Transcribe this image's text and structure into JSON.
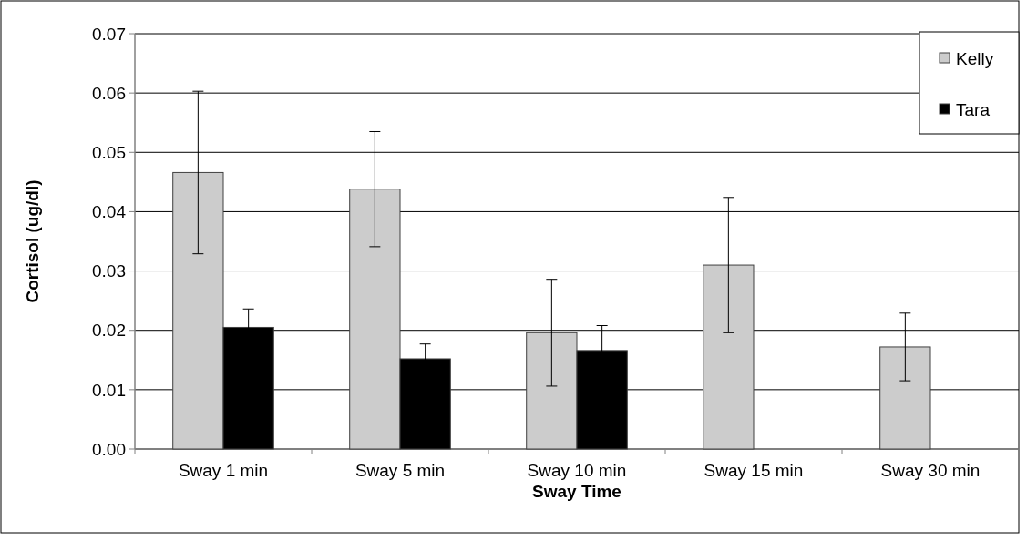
{
  "chart_data": {
    "type": "bar",
    "xlabel": "Sway Time",
    "ylabel": "Cortisol (ug/dl)",
    "categories": [
      "Sway 1 min",
      "Sway 5 min",
      "Sway 10 min",
      "Sway 15 min",
      "Sway 30 min"
    ],
    "series": [
      {
        "name": "Kelly",
        "color": "#cccccc",
        "values": [
          0.0466,
          0.0438,
          0.0196,
          0.031,
          0.0172
        ],
        "errors": [
          0.0137,
          0.0097,
          0.009,
          0.0114,
          0.0057
        ]
      },
      {
        "name": "Tara",
        "color": "#000000",
        "values": [
          0.0205,
          0.0152,
          0.0166,
          null,
          null
        ],
        "errors": [
          0.0031,
          0.0025,
          0.0042,
          null,
          null
        ]
      }
    ],
    "ylim": [
      0,
      0.07
    ],
    "yticks": [
      {
        "value": 0,
        "label": "0.00"
      },
      0.01,
      0.02,
      0.03,
      0.04,
      0.05,
      0.06,
      0.07
    ],
    "grid": "y",
    "legend": "top right"
  }
}
